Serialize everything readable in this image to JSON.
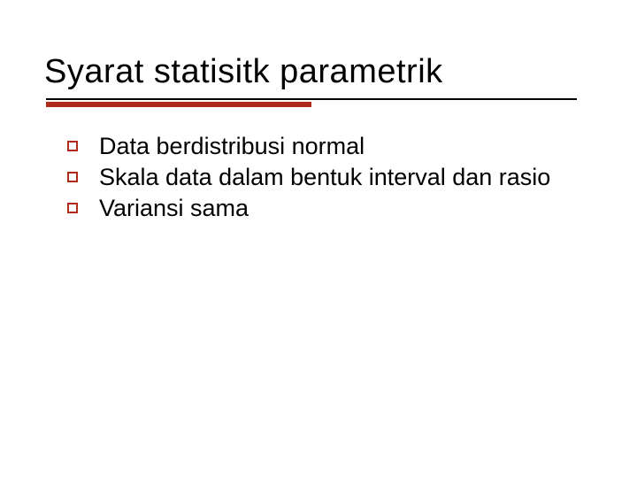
{
  "slide": {
    "title": "Syarat statisitk parametrik",
    "title_fontsize": 38,
    "title_color": "#000000",
    "underline": {
      "thin_color": "#000000",
      "thin_height": 2,
      "thick_color": "#b02a1a",
      "thick_height": 6,
      "thick_width_ratio": 0.5
    },
    "bullets": {
      "items": [
        "Data berdistribusi normal",
        "Skala data dalam bentuk interval dan rasio",
        "Variansi sama"
      ],
      "fontsize": 27,
      "text_color": "#000000",
      "marker_style": "hollow-square",
      "marker_border_color": "#b02a1a",
      "marker_size": 12,
      "marker_border_width": 2
    },
    "background_color": "#ffffff"
  }
}
